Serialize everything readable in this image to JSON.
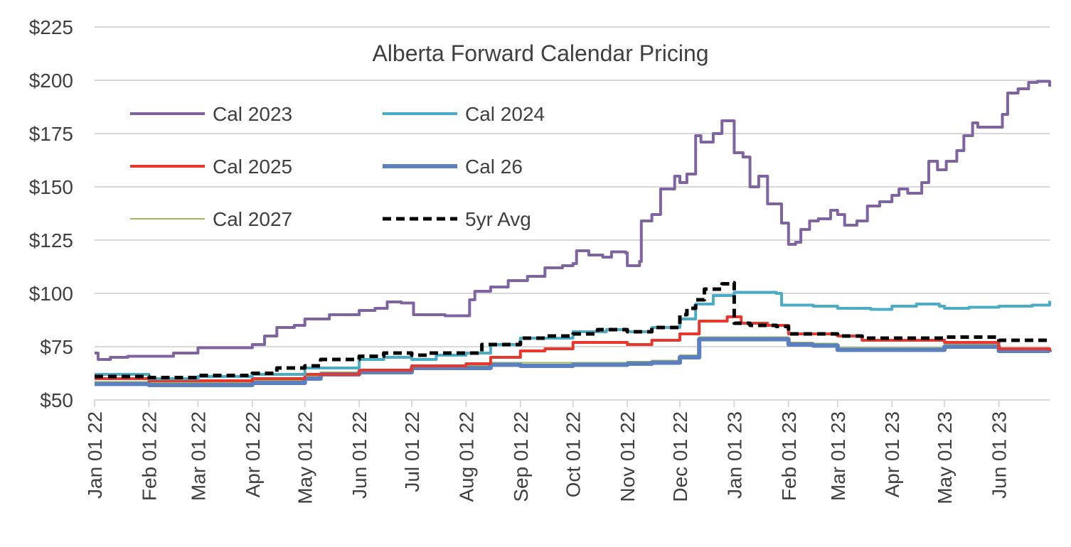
{
  "chart_data": {
    "type": "line",
    "title": "Alberta Forward Calendar Pricing",
    "xlabel": "",
    "ylabel": "",
    "ylim": [
      50,
      225
    ],
    "y_ticks": [
      "$50",
      "$75",
      "$100",
      "$125",
      "$150",
      "$175",
      "$200",
      "$225"
    ],
    "y_tick_values": [
      50,
      75,
      100,
      125,
      150,
      175,
      200,
      225
    ],
    "x_range": [
      "2022-01-01",
      "2023-06-30"
    ],
    "x_ticks": [
      "Jan 01 22",
      "Feb 01 22",
      "Mar 01 22",
      "Apr 01 22",
      "May 01 22",
      "Jun 01 22",
      "Jul 01 22",
      "Aug 01 22",
      "Sep 01 22",
      "Oct 01 22",
      "Nov 01 22",
      "Dec 01 22",
      "Jan 01 23",
      "Feb 01 23",
      "Mar 01 23",
      "Apr 01 23",
      "May 01 23",
      "Jun 01 23"
    ],
    "x_tick_dates": [
      "2022-01-01",
      "2022-02-01",
      "2022-03-01",
      "2022-04-01",
      "2022-05-01",
      "2022-06-01",
      "2022-07-01",
      "2022-08-01",
      "2022-09-01",
      "2022-10-01",
      "2022-11-01",
      "2022-12-01",
      "2023-01-01",
      "2023-02-01",
      "2023-03-01",
      "2023-04-01",
      "2023-05-01",
      "2023-06-01"
    ],
    "grid": "horizontal",
    "legend_position": "top-left",
    "series": [
      {
        "name": "Cal 2023",
        "color": "#8064a2",
        "style": "solid",
        "points": [
          [
            "2022-01-01",
            72
          ],
          [
            "2022-01-03",
            69
          ],
          [
            "2022-01-10",
            70
          ],
          [
            "2022-01-20",
            70.5
          ],
          [
            "2022-02-01",
            70.5
          ],
          [
            "2022-02-15",
            72
          ],
          [
            "2022-03-01",
            74.5
          ],
          [
            "2022-03-15",
            74.5
          ],
          [
            "2022-04-01",
            76
          ],
          [
            "2022-04-08",
            80
          ],
          [
            "2022-04-15",
            84
          ],
          [
            "2022-04-25",
            85
          ],
          [
            "2022-05-01",
            88
          ],
          [
            "2022-05-15",
            90
          ],
          [
            "2022-06-01",
            92
          ],
          [
            "2022-06-10",
            93
          ],
          [
            "2022-06-17",
            96
          ],
          [
            "2022-06-25",
            95.5
          ],
          [
            "2022-07-01",
            95.5
          ],
          [
            "2022-07-02",
            90
          ],
          [
            "2022-07-20",
            89.5
          ],
          [
            "2022-08-01",
            89.5
          ],
          [
            "2022-08-03",
            97
          ],
          [
            "2022-08-06",
            101
          ],
          [
            "2022-08-15",
            103
          ],
          [
            "2022-08-25",
            106
          ],
          [
            "2022-09-05",
            108
          ],
          [
            "2022-09-15",
            112
          ],
          [
            "2022-09-25",
            113
          ],
          [
            "2022-10-01",
            114
          ],
          [
            "2022-10-03",
            120
          ],
          [
            "2022-10-10",
            118
          ],
          [
            "2022-10-18",
            117
          ],
          [
            "2022-10-23",
            119.5
          ],
          [
            "2022-10-31",
            119
          ],
          [
            "2022-11-01",
            113
          ],
          [
            "2022-11-08",
            115
          ],
          [
            "2022-11-09",
            134
          ],
          [
            "2022-11-15",
            137
          ],
          [
            "2022-11-20",
            149
          ],
          [
            "2022-11-28",
            155
          ],
          [
            "2022-12-01",
            152
          ],
          [
            "2022-12-05",
            156
          ],
          [
            "2022-12-10",
            174
          ],
          [
            "2022-12-13",
            171
          ],
          [
            "2022-12-20",
            175
          ],
          [
            "2022-12-25",
            181
          ],
          [
            "2022-12-31",
            181
          ],
          [
            "2023-01-01",
            166
          ],
          [
            "2023-01-06",
            164
          ],
          [
            "2023-01-10",
            150
          ],
          [
            "2023-01-15",
            155
          ],
          [
            "2023-01-20",
            142
          ],
          [
            "2023-01-28",
            133
          ],
          [
            "2023-02-01",
            123
          ],
          [
            "2023-02-05",
            124
          ],
          [
            "2023-02-08",
            130
          ],
          [
            "2023-02-13",
            134
          ],
          [
            "2023-02-18",
            135
          ],
          [
            "2023-02-25",
            139
          ],
          [
            "2023-03-01",
            137
          ],
          [
            "2023-03-05",
            132
          ],
          [
            "2023-03-12",
            134
          ],
          [
            "2023-03-18",
            141
          ],
          [
            "2023-03-25",
            143
          ],
          [
            "2023-04-01",
            146
          ],
          [
            "2023-04-05",
            149
          ],
          [
            "2023-04-10",
            147
          ],
          [
            "2023-04-18",
            152
          ],
          [
            "2023-04-22",
            162
          ],
          [
            "2023-04-27",
            158
          ],
          [
            "2023-05-02",
            162
          ],
          [
            "2023-05-08",
            167
          ],
          [
            "2023-05-12",
            174
          ],
          [
            "2023-05-17",
            180
          ],
          [
            "2023-05-20",
            178
          ],
          [
            "2023-05-28",
            178
          ],
          [
            "2023-06-03",
            184
          ],
          [
            "2023-06-06",
            194
          ],
          [
            "2023-06-12",
            196
          ],
          [
            "2023-06-18",
            199
          ],
          [
            "2023-06-23",
            199.5
          ],
          [
            "2023-06-30",
            197
          ]
        ]
      },
      {
        "name": "Cal 2024",
        "color": "#4bacc6",
        "style": "solid",
        "points": [
          [
            "2022-01-01",
            62
          ],
          [
            "2022-02-01",
            60
          ],
          [
            "2022-03-01",
            61
          ],
          [
            "2022-04-01",
            62
          ],
          [
            "2022-05-01",
            65
          ],
          [
            "2022-06-01",
            69
          ],
          [
            "2022-06-15",
            70
          ],
          [
            "2022-07-01",
            69
          ],
          [
            "2022-07-15",
            71
          ],
          [
            "2022-08-01",
            72
          ],
          [
            "2022-08-15",
            76
          ],
          [
            "2022-09-01",
            79
          ],
          [
            "2022-10-01",
            82
          ],
          [
            "2022-10-20",
            83
          ],
          [
            "2022-11-01",
            82
          ],
          [
            "2022-11-15",
            84
          ],
          [
            "2022-12-01",
            88
          ],
          [
            "2022-12-10",
            95
          ],
          [
            "2022-12-20",
            99
          ],
          [
            "2023-01-01",
            100.5
          ],
          [
            "2023-01-15",
            100.5
          ],
          [
            "2023-01-25",
            100
          ],
          [
            "2023-01-28",
            94.5
          ],
          [
            "2023-02-15",
            94
          ],
          [
            "2023-03-01",
            93
          ],
          [
            "2023-03-20",
            92.5
          ],
          [
            "2023-04-01",
            94
          ],
          [
            "2023-04-15",
            95
          ],
          [
            "2023-04-28",
            94
          ],
          [
            "2023-05-01",
            93
          ],
          [
            "2023-05-15",
            93.5
          ],
          [
            "2023-06-01",
            94
          ],
          [
            "2023-06-20",
            94.5
          ],
          [
            "2023-06-30",
            96.5
          ]
        ]
      },
      {
        "name": "Cal 2025",
        "color": "#e8372d",
        "style": "solid",
        "points": [
          [
            "2022-01-01",
            60
          ],
          [
            "2022-02-01",
            59
          ],
          [
            "2022-03-01",
            59
          ],
          [
            "2022-04-01",
            60
          ],
          [
            "2022-05-01",
            62
          ],
          [
            "2022-06-01",
            64
          ],
          [
            "2022-07-01",
            66
          ],
          [
            "2022-08-01",
            67
          ],
          [
            "2022-08-15",
            70
          ],
          [
            "2022-09-01",
            73
          ],
          [
            "2022-09-15",
            74
          ],
          [
            "2022-10-01",
            77
          ],
          [
            "2022-10-20",
            77
          ],
          [
            "2022-11-01",
            76
          ],
          [
            "2022-11-15",
            78
          ],
          [
            "2022-12-01",
            81
          ],
          [
            "2022-12-12",
            87
          ],
          [
            "2022-12-28",
            89
          ],
          [
            "2023-01-05",
            86
          ],
          [
            "2023-01-20",
            85
          ],
          [
            "2023-02-01",
            81
          ],
          [
            "2023-02-15",
            81
          ],
          [
            "2023-03-01",
            80
          ],
          [
            "2023-03-15",
            78
          ],
          [
            "2023-04-01",
            78
          ],
          [
            "2023-05-01",
            77
          ],
          [
            "2023-05-20",
            77
          ],
          [
            "2023-06-01",
            74
          ],
          [
            "2023-06-30",
            73
          ]
        ]
      },
      {
        "name": "Cal 26",
        "color": "#5b7fbf",
        "style": "thick",
        "points": [
          [
            "2022-01-01",
            57.5
          ],
          [
            "2022-02-01",
            57
          ],
          [
            "2022-03-01",
            57
          ],
          [
            "2022-04-01",
            58
          ],
          [
            "2022-05-01",
            60
          ],
          [
            "2022-05-10",
            62
          ],
          [
            "2022-06-01",
            63
          ],
          [
            "2022-07-01",
            65
          ],
          [
            "2022-08-01",
            65
          ],
          [
            "2022-08-15",
            66.5
          ],
          [
            "2022-09-01",
            66
          ],
          [
            "2022-10-01",
            66.5
          ],
          [
            "2022-11-01",
            67
          ],
          [
            "2022-11-15",
            67.5
          ],
          [
            "2022-12-01",
            70
          ],
          [
            "2022-12-12",
            78.5
          ],
          [
            "2023-01-15",
            78.5
          ],
          [
            "2023-02-01",
            76
          ],
          [
            "2023-02-15",
            75.5
          ],
          [
            "2023-03-01",
            73.5
          ],
          [
            "2023-04-01",
            73.5
          ],
          [
            "2023-05-01",
            75
          ],
          [
            "2023-05-15",
            75
          ],
          [
            "2023-06-01",
            73
          ],
          [
            "2023-06-30",
            72.5
          ]
        ]
      },
      {
        "name": "Cal 2027",
        "color": "#9bbb59",
        "style": "thin",
        "points": [
          [
            "2022-01-01",
            58.5
          ],
          [
            "2022-02-01",
            58
          ],
          [
            "2022-03-01",
            58
          ],
          [
            "2022-04-01",
            59
          ],
          [
            "2022-05-01",
            61
          ],
          [
            "2022-05-10",
            63
          ],
          [
            "2022-06-01",
            64
          ],
          [
            "2022-07-01",
            66
          ],
          [
            "2022-08-01",
            66
          ],
          [
            "2022-08-15",
            67.5
          ],
          [
            "2022-09-01",
            67.5
          ],
          [
            "2022-10-01",
            67.5
          ],
          [
            "2022-11-01",
            68
          ],
          [
            "2022-11-15",
            68.5
          ],
          [
            "2022-12-01",
            71
          ],
          [
            "2022-12-12",
            79.5
          ],
          [
            "2023-01-15",
            79.5
          ],
          [
            "2023-02-01",
            77
          ],
          [
            "2023-02-15",
            76.5
          ],
          [
            "2023-03-01",
            74.5
          ],
          [
            "2023-04-01",
            74.5
          ],
          [
            "2023-05-01",
            76
          ],
          [
            "2023-05-15",
            76
          ],
          [
            "2023-06-01",
            74
          ],
          [
            "2023-06-30",
            73.5
          ]
        ]
      },
      {
        "name": "5yr Avg",
        "color": "#000000",
        "style": "dashed",
        "points": [
          [
            "2022-01-01",
            61
          ],
          [
            "2022-02-01",
            60.5
          ],
          [
            "2022-03-01",
            61.5
          ],
          [
            "2022-04-01",
            62.5
          ],
          [
            "2022-04-15",
            65
          ],
          [
            "2022-05-01",
            66
          ],
          [
            "2022-05-10",
            69
          ],
          [
            "2022-06-01",
            70.5
          ],
          [
            "2022-06-15",
            72
          ],
          [
            "2022-07-01",
            71
          ],
          [
            "2022-07-10",
            72
          ],
          [
            "2022-08-01",
            72
          ],
          [
            "2022-08-10",
            76
          ],
          [
            "2022-09-01",
            79
          ],
          [
            "2022-09-15",
            80
          ],
          [
            "2022-10-01",
            81
          ],
          [
            "2022-10-15",
            83
          ],
          [
            "2022-11-01",
            82
          ],
          [
            "2022-11-15",
            84
          ],
          [
            "2022-12-01",
            90
          ],
          [
            "2022-12-05",
            93
          ],
          [
            "2022-12-10",
            97
          ],
          [
            "2022-12-15",
            102
          ],
          [
            "2022-12-25",
            104.5
          ],
          [
            "2022-12-31",
            105
          ],
          [
            "2023-01-01",
            86
          ],
          [
            "2023-01-10",
            85
          ],
          [
            "2023-01-25",
            84.5
          ],
          [
            "2023-02-01",
            81
          ],
          [
            "2023-03-01",
            80
          ],
          [
            "2023-03-15",
            79
          ],
          [
            "2023-04-01",
            79
          ],
          [
            "2023-05-01",
            79.5
          ],
          [
            "2023-05-20",
            79.5
          ],
          [
            "2023-06-01",
            78
          ],
          [
            "2023-06-30",
            77
          ]
        ]
      }
    ]
  }
}
